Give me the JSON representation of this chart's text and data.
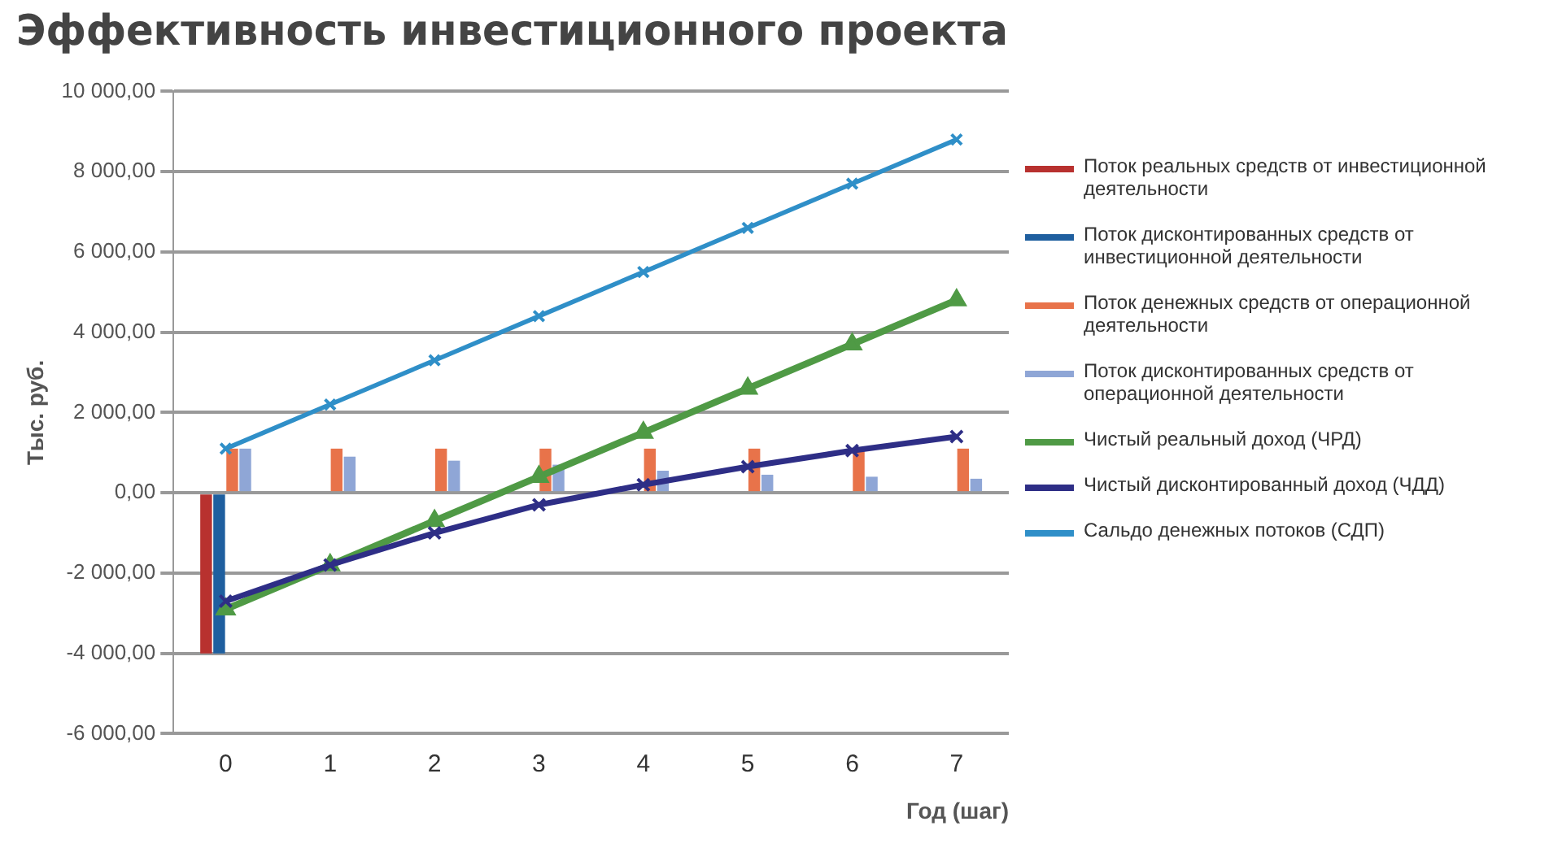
{
  "chart_data": {
    "type": "bar",
    "title": "Эффективность инвестиционного проекта",
    "xlabel": "Год (шаг)",
    "ylabel": "Тыс. руб.",
    "categories": [
      "0",
      "1",
      "2",
      "3",
      "4",
      "5",
      "6",
      "7"
    ],
    "series": [
      {
        "name": "Поток реальных средств от инвестиционной деятельности",
        "color": "#b8312f",
        "values": [
          -4000,
          0,
          0,
          0,
          0,
          0,
          0,
          0
        ]
      },
      {
        "name": "Поток дисконтированных средств от инвестиционной деятельности",
        "color": "#1f5f9f",
        "values": [
          -4000,
          0,
          0,
          0,
          0,
          0,
          0,
          0
        ]
      },
      {
        "name": "Поток денежных средств от операционной деятельности",
        "color": "#e8734a",
        "values": [
          1100,
          1100,
          1100,
          1100,
          1100,
          1100,
          1100,
          1100
        ]
      },
      {
        "name": "Поток дисконтированных средств от операционной деятельности",
        "color": "#8fa6d6",
        "values": [
          1100,
          900,
          800,
          700,
          550,
          450,
          400,
          350
        ]
      },
      {
        "name": "Чистый реальный доход (ЧРД)",
        "type": "line",
        "marker": "triangle",
        "color": "#4f9a45",
        "values": [
          -2900,
          -1800,
          -700,
          400,
          1500,
          2600,
          3700,
          4800
        ]
      },
      {
        "name": "Чистый дисконтированный доход (ЧДД)",
        "type": "line",
        "marker": "cross",
        "color": "#2e2e86",
        "values": [
          -2700,
          -1800,
          -1000,
          -300,
          200,
          650,
          1050,
          1400
        ]
      },
      {
        "name": "Сальдо денежных потоков (СДП)",
        "type": "line",
        "marker": "cross",
        "color": "#2f8fc8",
        "values": [
          1100,
          2200,
          3300,
          4400,
          5500,
          6600,
          7700,
          8800
        ]
      }
    ],
    "ylim": [
      -6000,
      10000
    ],
    "yticks": [
      {
        "value": -6000,
        "label": "-6 000,00"
      },
      {
        "value": -4000,
        "label": "-4 000,00"
      },
      {
        "value": -2000,
        "label": "-2 000,00"
      },
      {
        "value": 0,
        "label": "0,00"
      },
      {
        "value": 2000,
        "label": "2 000,00"
      },
      {
        "value": 4000,
        "label": "4 000,00"
      },
      {
        "value": 6000,
        "label": "6 000,00"
      },
      {
        "value": 8000,
        "label": "8 000,00"
      },
      {
        "value": 10000,
        "label": "10 000,00"
      }
    ],
    "grid": "y",
    "legend": "right"
  }
}
